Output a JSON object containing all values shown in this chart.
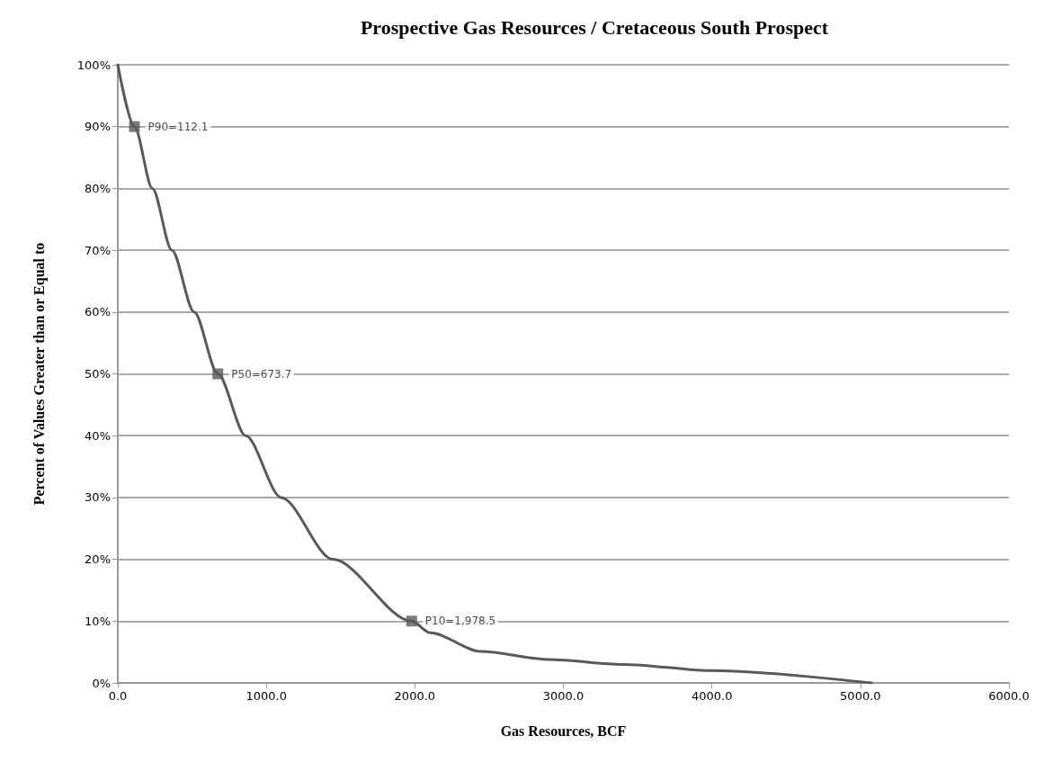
{
  "chart_data": {
    "type": "line",
    "title": "Prospective Gas Resources / Cretaceous South Prospect",
    "xlabel": "Gas Resources, BCF",
    "ylabel": "Percent of Values Greater than or Equal to",
    "series": [
      {
        "color": "#595959",
        "x": [
          0,
          112.1,
          233,
          364,
          514,
          673.7,
          861,
          1100,
          1447,
          1978.5,
          2104,
          2445,
          2905,
          3401,
          3999,
          5075
        ],
        "values": [
          100,
          90,
          80,
          70,
          60,
          50,
          40,
          30,
          20,
          10,
          8.1,
          5.1,
          3.8,
          3.0,
          2.0,
          0
        ]
      }
    ],
    "annotations": [
      {
        "text": "P90=112.1",
        "x": 112.1,
        "y": 90
      },
      {
        "text": "P50=673.7",
        "x": 673.7,
        "y": 50
      },
      {
        "text": "P10=1,978.5",
        "x": 1978.5,
        "y": 10
      }
    ],
    "xlim": [
      0,
      6000
    ],
    "xticks": [
      {
        "value": 0,
        "label": "0.0"
      },
      {
        "value": 1000,
        "label": "1000.0"
      },
      {
        "value": 2000,
        "label": "2000.0"
      },
      {
        "value": 3000,
        "label": "3000.0"
      },
      {
        "value": 4000,
        "label": "4000.0"
      },
      {
        "value": 5000,
        "label": "5000.0"
      },
      {
        "value": 6000,
        "label": "6000.0"
      }
    ],
    "ylim": [
      0,
      100
    ],
    "yticks": [
      {
        "value": 0,
        "label": "0%"
      },
      {
        "value": 10,
        "label": "10%"
      },
      {
        "value": 20,
        "label": "20%"
      },
      {
        "value": 30,
        "label": "30%"
      },
      {
        "value": 40,
        "label": "40%"
      },
      {
        "value": 50,
        "label": "50%"
      },
      {
        "value": 60,
        "label": "60%"
      },
      {
        "value": 70,
        "label": "70%"
      },
      {
        "value": 80,
        "label": "80%"
      },
      {
        "value": 90,
        "label": "90%"
      },
      {
        "value": 100,
        "label": "100%"
      }
    ],
    "grid": "y",
    "marker": "none",
    "line_style": "solid"
  }
}
